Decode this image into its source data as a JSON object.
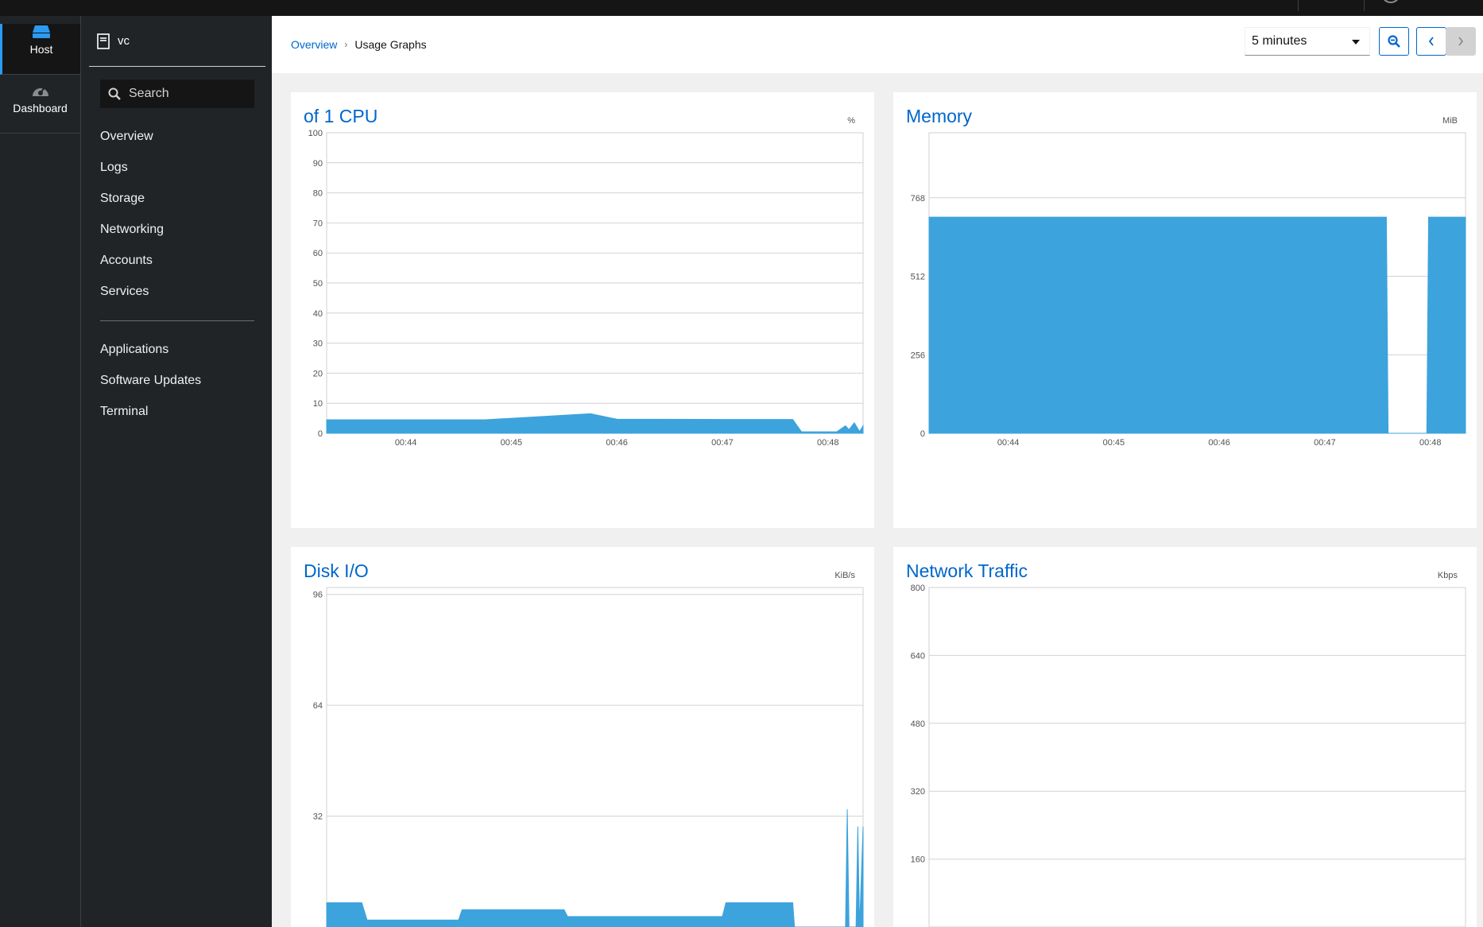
{
  "header": {
    "rail": [
      {
        "label": "Host",
        "icon": "server-icon",
        "active": true
      },
      {
        "label": "Dashboard",
        "icon": "dashboard-icon",
        "active": false
      }
    ],
    "host_name": "vc"
  },
  "sidebar": {
    "search_placeholder": "Search",
    "items": [
      "Overview",
      "Logs",
      "Storage",
      "Networking",
      "Accounts",
      "Services"
    ],
    "items2": [
      "Applications",
      "Software Updates",
      "Terminal"
    ]
  },
  "breadcrumb": {
    "parent": "Overview",
    "current": "Usage Graphs"
  },
  "toolbar": {
    "range": "5 minutes"
  },
  "colors": {
    "accent": "#0066cc",
    "fill": "#3da3dc"
  },
  "chart_data": [
    {
      "type": "area",
      "title": "of 1 CPU",
      "unit": "%",
      "x_ticks": [
        "00:44",
        "00:45",
        "00:46",
        "00:47",
        "00:48"
      ],
      "y_ticks": [
        0,
        10,
        20,
        30,
        40,
        50,
        60,
        70,
        80,
        90,
        100
      ],
      "ylim": [
        0,
        100
      ],
      "series": [
        {
          "x": [
            "00:43:15",
            "00:44:00",
            "00:44:45",
            "00:45:45",
            "00:46:00",
            "00:47:00",
            "00:47:40",
            "00:47:45",
            "00:48:05",
            "00:48:10",
            "00:48:12",
            "00:48:15",
            "00:48:18",
            "00:48:20"
          ],
          "y": [
            4.5,
            4.5,
            4.5,
            6.5,
            4.7,
            4.6,
            4.6,
            0.5,
            0.5,
            2.5,
            1.2,
            3.5,
            0.6,
            2.5
          ]
        }
      ]
    },
    {
      "type": "area",
      "title": "Memory",
      "unit": "MiB",
      "x_ticks": [
        "00:44",
        "00:45",
        "00:46",
        "00:47",
        "00:48"
      ],
      "y_ticks": [
        0,
        256,
        512,
        768
      ],
      "ylim": [
        0,
        980
      ],
      "series": [
        {
          "x": [
            "00:43:15",
            "00:47:35",
            "00:47:36",
            "00:47:58",
            "00:47:59",
            "00:48:20"
          ],
          "y": [
            705,
            705,
            0,
            0,
            705,
            705
          ]
        }
      ]
    },
    {
      "type": "area",
      "title": "Disk I/O",
      "unit": "KiB/s",
      "x_ticks": [],
      "y_ticks": [
        32,
        64,
        96
      ],
      "ylim": [
        0,
        98
      ],
      "series": [
        {
          "x": [
            "00:43:15",
            "00:43:35",
            "00:43:38",
            "00:44:30",
            "00:44:32",
            "00:45:30",
            "00:45:32",
            "00:46:20",
            "00:46:22",
            "00:47:00",
            "00:47:02",
            "00:47:40",
            "00:47:41",
            "00:48:10",
            "00:48:11",
            "00:48:12",
            "00:48:16",
            "00:48:17",
            "00:48:18",
            "00:48:20"
          ],
          "y": [
            7,
            7,
            2,
            2,
            5,
            5,
            3,
            3,
            3,
            3,
            7,
            7,
            0,
            0,
            34,
            0,
            0,
            29,
            0,
            29
          ]
        }
      ]
    },
    {
      "type": "area",
      "title": "Network Traffic",
      "unit": "Kbps",
      "x_ticks": [],
      "y_ticks": [
        160,
        320,
        480,
        640,
        800
      ],
      "ylim": [
        0,
        800
      ],
      "series": [
        {
          "x": [],
          "y": []
        }
      ]
    }
  ]
}
